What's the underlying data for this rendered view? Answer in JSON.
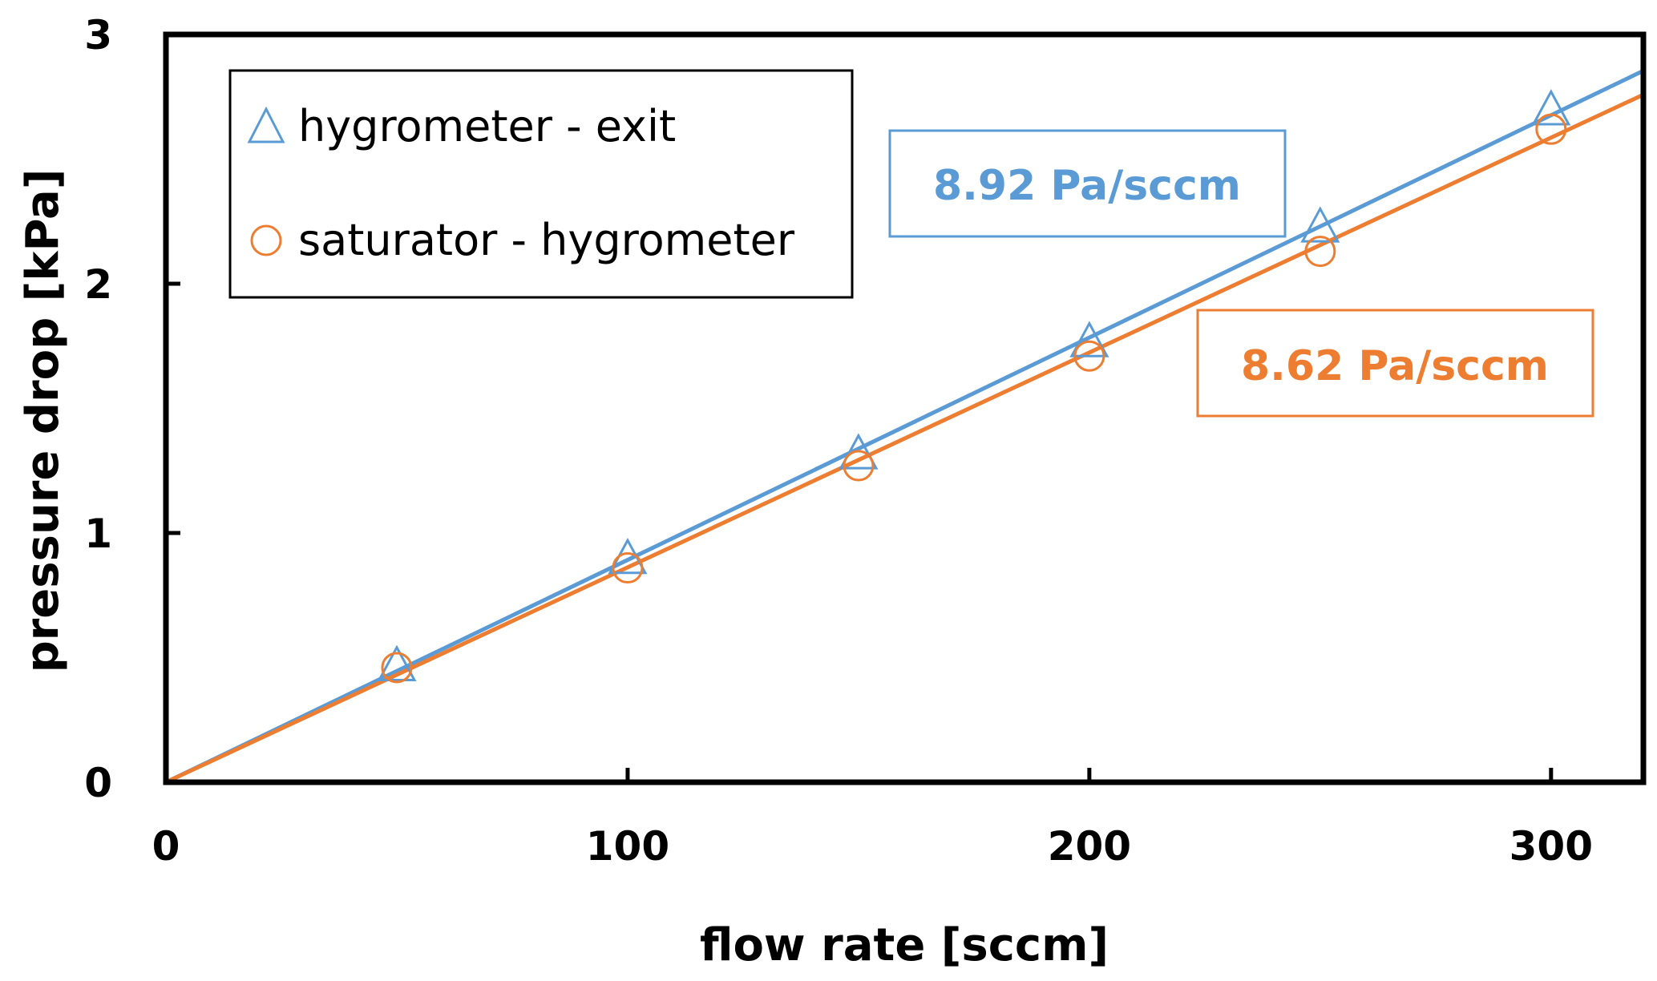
{
  "chart_data": {
    "type": "scatter",
    "xlabel": "flow rate [sccm]",
    "ylabel": "pressure drop [kPa]",
    "xlim": [
      0,
      320
    ],
    "ylim": [
      0,
      3
    ],
    "x_ticks": [
      "0",
      "100",
      "200",
      "300"
    ],
    "y_ticks": [
      "0",
      "1",
      "2",
      "3"
    ],
    "grid": false,
    "legend_position": "top-left",
    "series": [
      {
        "name": "hygrometer - exit",
        "marker": "triangle-open",
        "color": "#5B9BD5",
        "x": [
          50,
          100,
          150,
          200,
          250,
          300
        ],
        "y": [
          0.47,
          0.9,
          1.32,
          1.77,
          2.23,
          2.7
        ],
        "fit_slope_kpa_per_sccm": 0.00892
      },
      {
        "name": "saturator - hygrometer",
        "marker": "circle-open",
        "color": "#ED7D31",
        "x": [
          50,
          100,
          150,
          200,
          250,
          300
        ],
        "y": [
          0.46,
          0.86,
          1.27,
          1.71,
          2.13,
          2.62
        ],
        "fit_slope_kpa_per_sccm": 0.00862
      }
    ],
    "annotations": [
      {
        "text": "8.92 Pa/sccm",
        "color": "#5B9BD5"
      },
      {
        "text": "8.62 Pa/sccm",
        "color": "#ED7D31"
      }
    ]
  }
}
